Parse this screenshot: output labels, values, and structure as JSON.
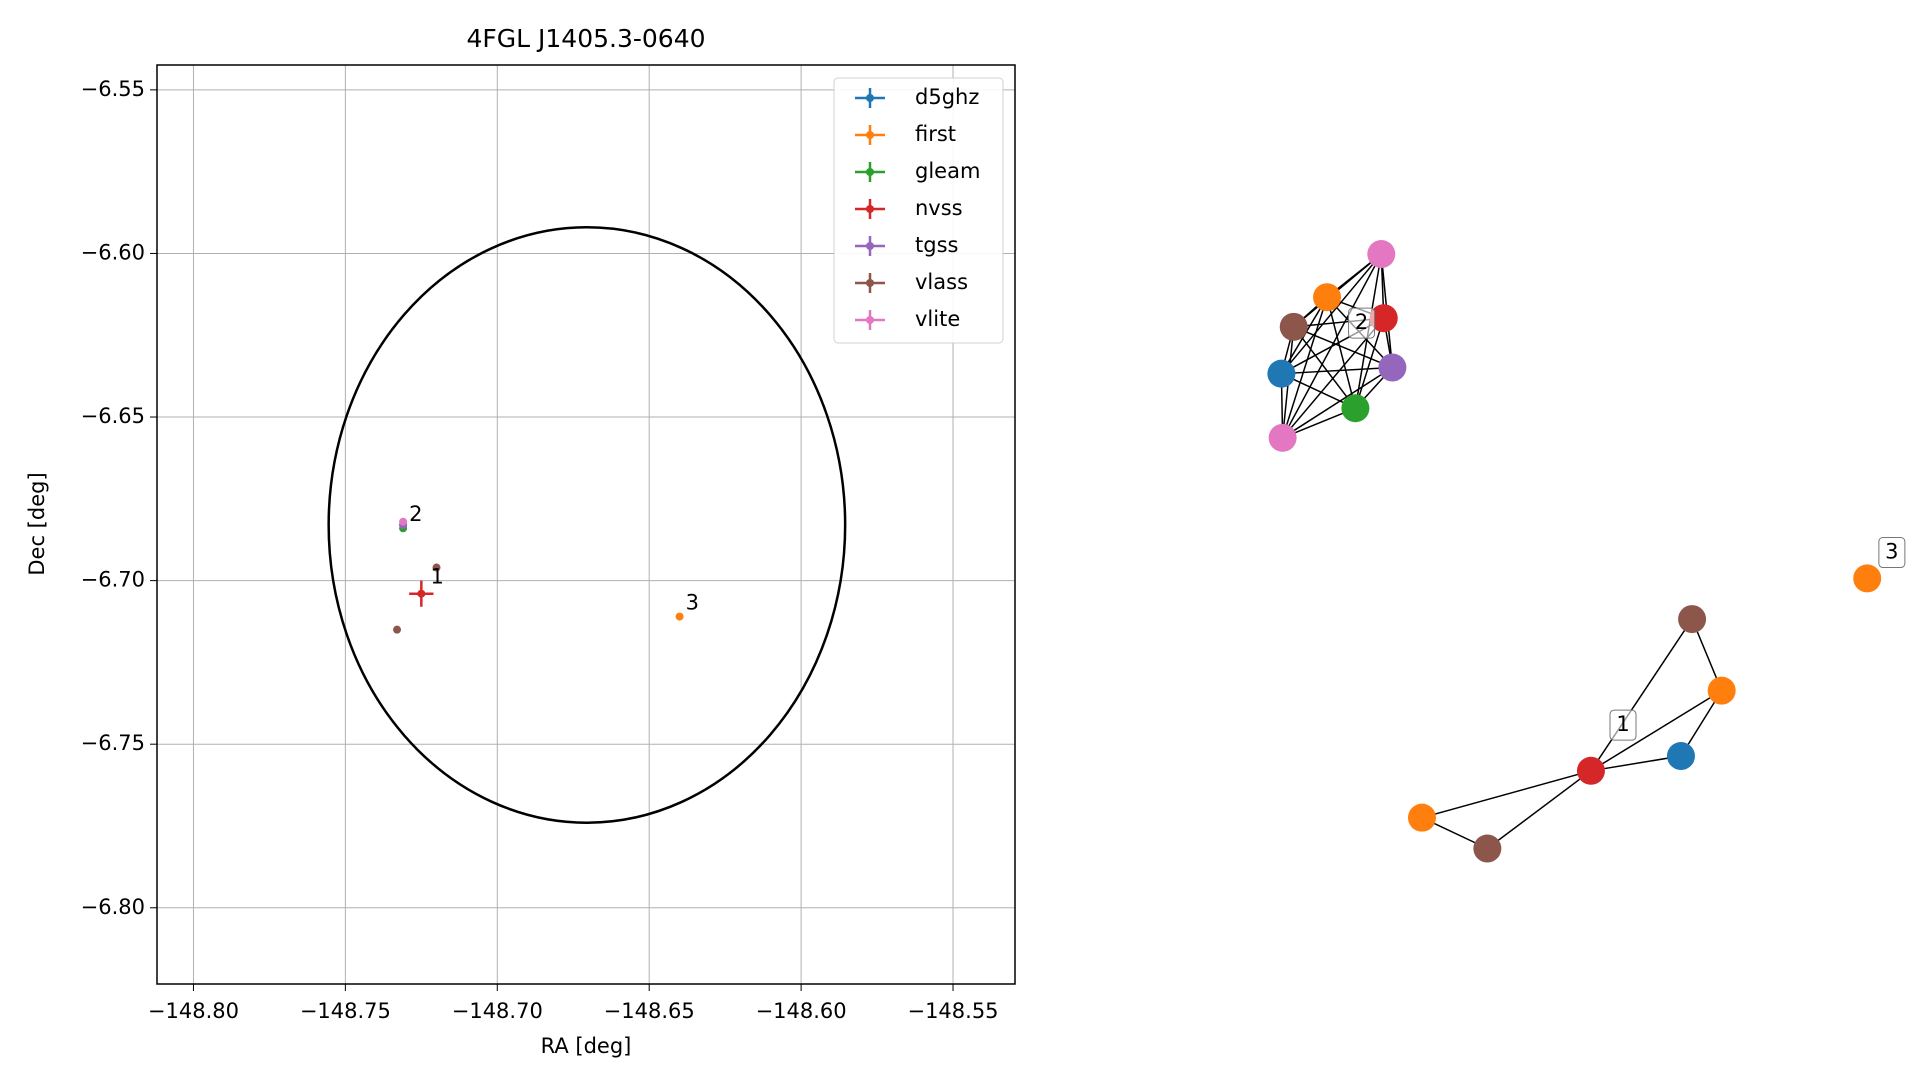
{
  "chart_data": {
    "type": "scatter",
    "title": "4FGL J1405.3-0640",
    "x_label": "RA [deg]",
    "y_label": "Dec [deg]",
    "xlim": [
      -148.812,
      -148.5296
    ],
    "ylim": [
      -6.8233,
      -6.5424
    ],
    "xticks": [
      {
        "value": -148.8,
        "label": "−148.80"
      },
      {
        "value": -148.75,
        "label": "−148.75"
      },
      {
        "value": -148.7,
        "label": "−148.70"
      },
      {
        "value": -148.65,
        "label": "−148.65"
      },
      {
        "value": -148.6,
        "label": "−148.60"
      },
      {
        "value": -148.55,
        "label": "−148.55"
      }
    ],
    "yticks": [
      {
        "value": -6.55,
        "label": "−6.55"
      },
      {
        "value": -6.6,
        "label": "−6.60"
      },
      {
        "value": -6.65,
        "label": "−6.65"
      },
      {
        "value": -6.7,
        "label": "−6.70"
      },
      {
        "value": -6.75,
        "label": "−6.75"
      },
      {
        "value": -6.8,
        "label": "−6.80"
      }
    ],
    "grid": true,
    "legend": "upper right",
    "series": [
      {
        "name": "d5ghz",
        "color": "#1f77b4",
        "x": [
          -148.731
        ],
        "values": [
          -6.683
        ]
      },
      {
        "name": "first",
        "color": "#ff7f0e",
        "x": [
          -148.64
        ],
        "values": [
          -6.711
        ]
      },
      {
        "name": "gleam",
        "color": "#2ca02c",
        "x": [
          -148.731
        ],
        "values": [
          -6.684
        ]
      },
      {
        "name": "nvss",
        "color": "#d62728",
        "x": [
          -148.725
        ],
        "values": [
          -6.704
        ],
        "xerr": [
          0.004
        ],
        "yerr": [
          0.004
        ]
      },
      {
        "name": "tgss",
        "color": "#9467bd",
        "x": [
          -148.731
        ],
        "values": [
          -6.683
        ]
      },
      {
        "name": "vlass",
        "color": "#8c564b",
        "x": [
          -148.72,
          -148.733
        ],
        "values": [
          -6.696,
          -6.715
        ]
      },
      {
        "name": "vlite",
        "color": "#e377c2",
        "x": [
          -148.731
        ],
        "values": [
          -6.682
        ]
      }
    ],
    "ellipse": {
      "center_x": -148.6705,
      "center_y": -6.683,
      "rx": 0.085,
      "ry": 0.091,
      "color": "#000000"
    },
    "annotations": [
      {
        "text": "1",
        "x": -148.722,
        "y": -6.699
      },
      {
        "text": "2",
        "x": -148.729,
        "y": -6.68
      },
      {
        "text": "3",
        "x": -148.638,
        "y": -6.707
      }
    ]
  },
  "graph": {
    "labels": [
      "1",
      "2",
      "3"
    ]
  }
}
